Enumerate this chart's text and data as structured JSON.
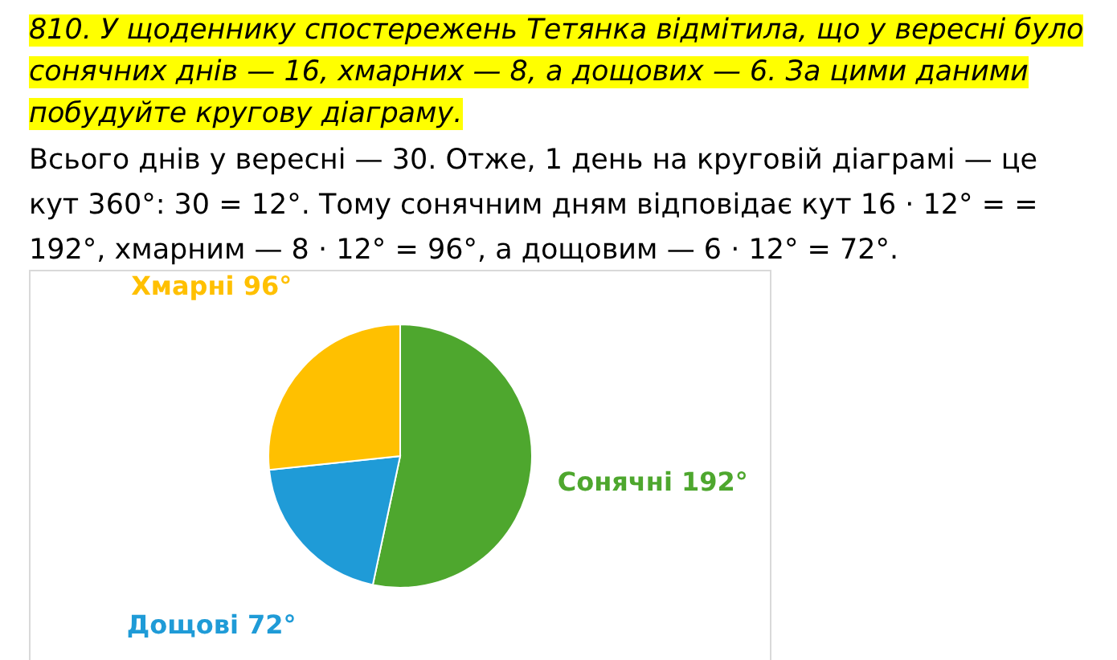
{
  "chart_data": {
    "type": "pie",
    "title": "810. У щоденнику спостережень Тетянка відмітила, що у вересні було сонячних днів — 16, хмарних — 8, а дощових — 6. За цими даними побудуйте кругову діаграму.",
    "annotations": [
      "Всього днів у вересні — 30. Отже, 1 день на круговій діаграмі — це кут 360°: 30 = 12°. Тому сонячним дням відповідає кут 16 · 12° = = 192°, хмарним — 8 · 12° = 96°, а дощовим — 6 · 12° = 72°."
    ],
    "categories": [
      "Сонячні",
      "Дощові",
      "Хмарні"
    ],
    "values": [
      192,
      72,
      96
    ],
    "value_labels": [
      "192°",
      "72°",
      "96°"
    ],
    "colors": [
      "#4ea72e",
      "#1f9bd7",
      "#ffc000"
    ]
  }
}
